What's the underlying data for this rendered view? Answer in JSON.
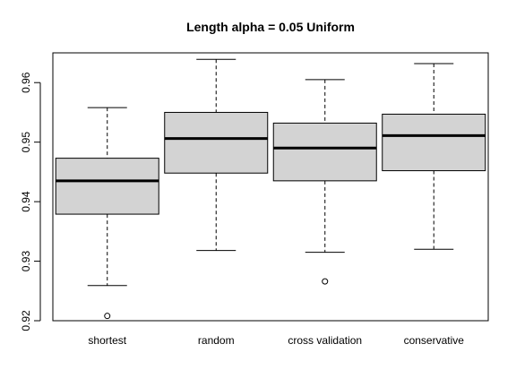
{
  "chart_data": {
    "type": "boxplot",
    "title": "Length alpha = 0.05 Uniform",
    "xlabel": "",
    "ylabel": "",
    "ylim": [
      0.92,
      0.965
    ],
    "yticks": [
      0.92,
      0.93,
      0.94,
      0.95,
      0.96
    ],
    "ytick_labels": [
      "0.92",
      "0.93",
      "0.94",
      "0.95",
      "0.96"
    ],
    "box_fill": "#d3d3d3",
    "categories": [
      "shortest",
      "random",
      "cross validation",
      "conservative"
    ],
    "boxes": [
      {
        "name": "shortest",
        "whisker_low": 0.9259,
        "q1": 0.9379,
        "median": 0.9435,
        "q3": 0.9473,
        "whisker_high": 0.9558,
        "outliers": [
          0.9208
        ]
      },
      {
        "name": "random",
        "whisker_low": 0.9318,
        "q1": 0.9448,
        "median": 0.9506,
        "q3": 0.955,
        "whisker_high": 0.9639,
        "outliers": []
      },
      {
        "name": "cross validation",
        "whisker_low": 0.9315,
        "q1": 0.9435,
        "median": 0.949,
        "q3": 0.9532,
        "whisker_high": 0.9605,
        "outliers": [
          0.9266
        ]
      },
      {
        "name": "conservative",
        "whisker_low": 0.932,
        "q1": 0.9452,
        "median": 0.9511,
        "q3": 0.9547,
        "whisker_high": 0.9632,
        "outliers": []
      }
    ]
  }
}
